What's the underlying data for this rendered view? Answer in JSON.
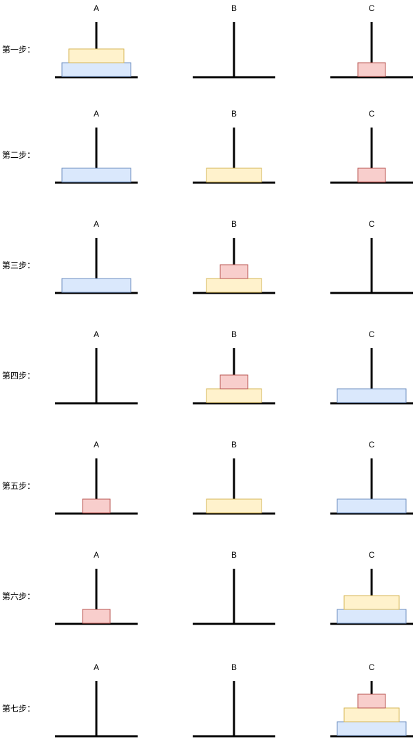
{
  "pegs": [
    "A",
    "B",
    "C"
  ],
  "disks": {
    "large": {
      "fill": "#dae8fc",
      "stroke": "#6c8ebf",
      "size": 3
    },
    "medium": {
      "fill": "#fff2cc",
      "stroke": "#d6b656",
      "size": 2
    },
    "small": {
      "fill": "#f8cecc",
      "stroke": "#b85450",
      "size": 1
    }
  },
  "steps": [
    {
      "label": "第一步：",
      "A": [
        "large",
        "medium"
      ],
      "B": [],
      "C": [
        "small"
      ]
    },
    {
      "label": "第二步：",
      "A": [
        "large"
      ],
      "B": [
        "medium"
      ],
      "C": [
        "small"
      ]
    },
    {
      "label": "第三步：",
      "A": [
        "large"
      ],
      "B": [
        "medium",
        "small"
      ],
      "C": []
    },
    {
      "label": "第四步：",
      "A": [],
      "B": [
        "medium",
        "small"
      ],
      "C": [
        "large"
      ]
    },
    {
      "label": "第五步：",
      "A": [
        "small"
      ],
      "B": [
        "medium"
      ],
      "C": [
        "large"
      ]
    },
    {
      "label": "第六步：",
      "A": [
        "small"
      ],
      "B": [],
      "C": [
        "large",
        "medium"
      ]
    },
    {
      "label": "第七步：",
      "A": [],
      "B": [],
      "C": [
        "large",
        "medium",
        "small"
      ]
    }
  ]
}
